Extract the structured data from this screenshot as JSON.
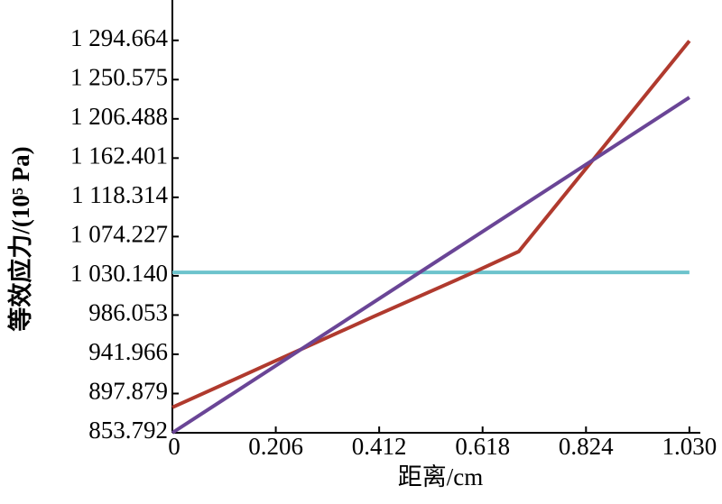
{
  "chart_data": {
    "type": "line",
    "x_label": "距离/cm",
    "y_label": "等效应力/(10⁵ Pa)",
    "xlim": [
      0,
      1.05
    ],
    "xticks": [
      0,
      0.206,
      0.412,
      0.618,
      0.824,
      {
        "value": 1.03,
        "label": "1.030"
      }
    ],
    "ylim": [
      853.792,
      1340
    ],
    "yticks": [
      853.792,
      897.879,
      941.966,
      986.053,
      {
        "value": 1030.14,
        "label": "1 030.140"
      },
      {
        "value": 1074.227,
        "label": "1 074.227"
      },
      {
        "value": 1118.314,
        "label": "1 118.314"
      },
      {
        "value": 1162.401,
        "label": "1 162.401"
      },
      {
        "value": 1206.488,
        "label": "1 206.488"
      },
      {
        "value": 1250.575,
        "label": "1 250.575"
      },
      {
        "value": 1294.664,
        "label": "1 294.664"
      }
    ],
    "series": [
      {
        "color": "#6cc3cc",
        "x": [
          0,
          1.03
        ],
        "values": [
          1034,
          1034
        ]
      },
      {
        "color": "#b03a2e",
        "x": [
          0,
          0.2,
          0.4,
          0.6,
          0.69,
          1.03
        ],
        "values": [
          882.3,
          933.2,
          984.1,
          1034,
          1057.4,
          1294
        ]
      },
      {
        "color": "#6a4596",
        "x": [
          0,
          1.03
        ],
        "values": [
          853.8,
          1230.5
        ]
      }
    ]
  }
}
